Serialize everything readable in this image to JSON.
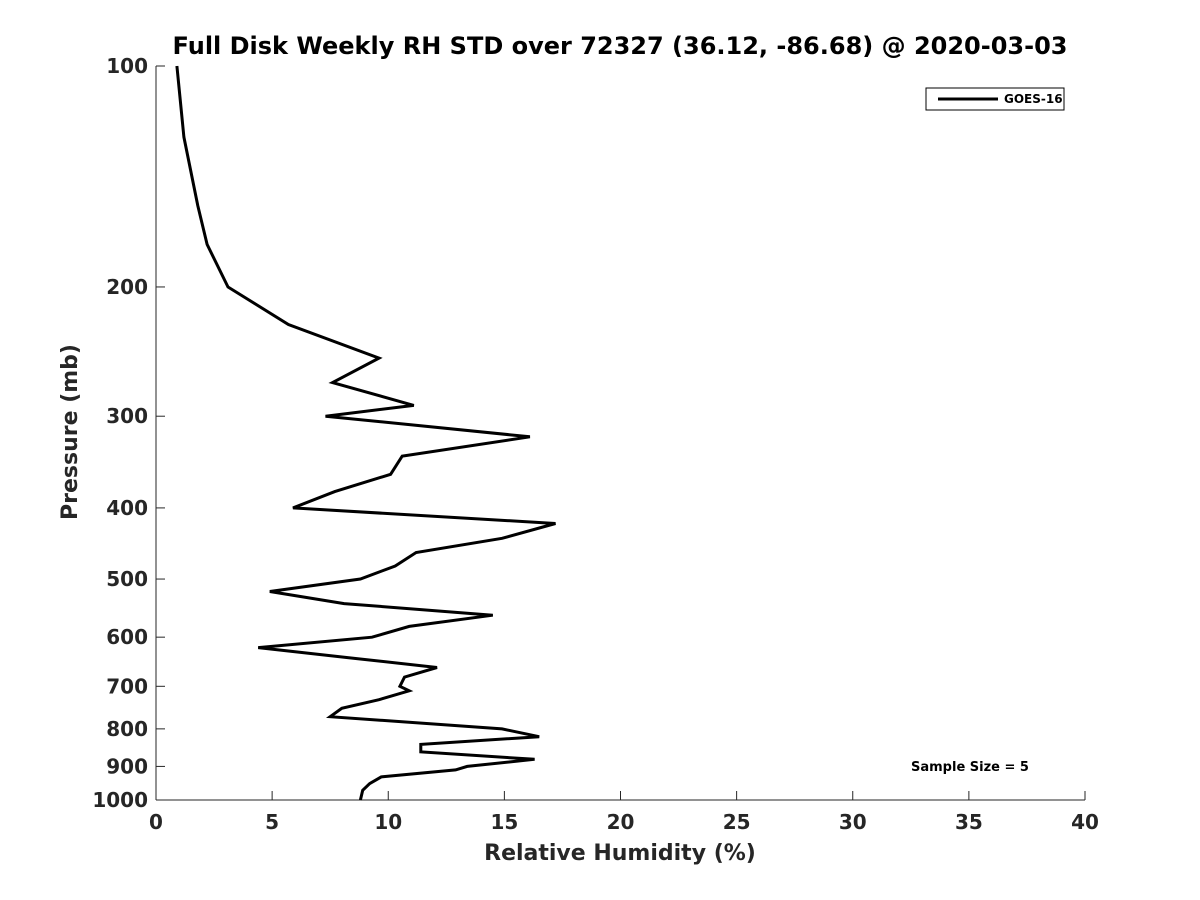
{
  "chart_data": {
    "type": "line",
    "title": "Full Disk Weekly RH STD over 72327 (36.12, -86.68) @ 2020-03-03",
    "xlabel": "Relative Humidity (%)",
    "ylabel": "Pressure (mb)",
    "xlim": [
      0,
      40
    ],
    "ylim": [
      100,
      1000
    ],
    "yscale": "log",
    "y_reversed": true,
    "xticks": [
      0,
      5,
      10,
      15,
      20,
      25,
      30,
      35,
      40
    ],
    "yticks": [
      100,
      200,
      300,
      400,
      500,
      600,
      700,
      800,
      900,
      1000
    ],
    "grid": false,
    "legend_position": "top-right",
    "annotation": "Sample Size = 5",
    "series": [
      {
        "name": "GOES-16",
        "color": "#000000",
        "points": [
          [
            0.9,
            100
          ],
          [
            1.2,
            125
          ],
          [
            1.8,
            155
          ],
          [
            2.2,
            175
          ],
          [
            3.1,
            200
          ],
          [
            5.7,
            225
          ],
          [
            9.6,
            250
          ],
          [
            7.6,
            270
          ],
          [
            11.1,
            290
          ],
          [
            7.3,
            300
          ],
          [
            16.1,
            320
          ],
          [
            10.6,
            340
          ],
          [
            10.1,
            360
          ],
          [
            7.7,
            380
          ],
          [
            5.9,
            400
          ],
          [
            17.2,
            420
          ],
          [
            14.9,
            440
          ],
          [
            11.2,
            460
          ],
          [
            10.3,
            480
          ],
          [
            8.8,
            500
          ],
          [
            4.9,
            520
          ],
          [
            8.1,
            540
          ],
          [
            14.5,
            560
          ],
          [
            10.9,
            580
          ],
          [
            9.3,
            600
          ],
          [
            4.4,
            620
          ],
          [
            8.3,
            640
          ],
          [
            12.1,
            660
          ],
          [
            10.7,
            680
          ],
          [
            10.5,
            700
          ],
          [
            10.9,
            710
          ],
          [
            9.6,
            730
          ],
          [
            8.0,
            750
          ],
          [
            7.5,
            770
          ],
          [
            14.9,
            800
          ],
          [
            16.5,
            820
          ],
          [
            11.4,
            840
          ],
          [
            11.4,
            860
          ],
          [
            16.3,
            880
          ],
          [
            13.4,
            900
          ],
          [
            12.9,
            910
          ],
          [
            9.7,
            930
          ],
          [
            9.2,
            950
          ],
          [
            8.9,
            970
          ],
          [
            8.8,
            1000
          ]
        ]
      }
    ]
  }
}
